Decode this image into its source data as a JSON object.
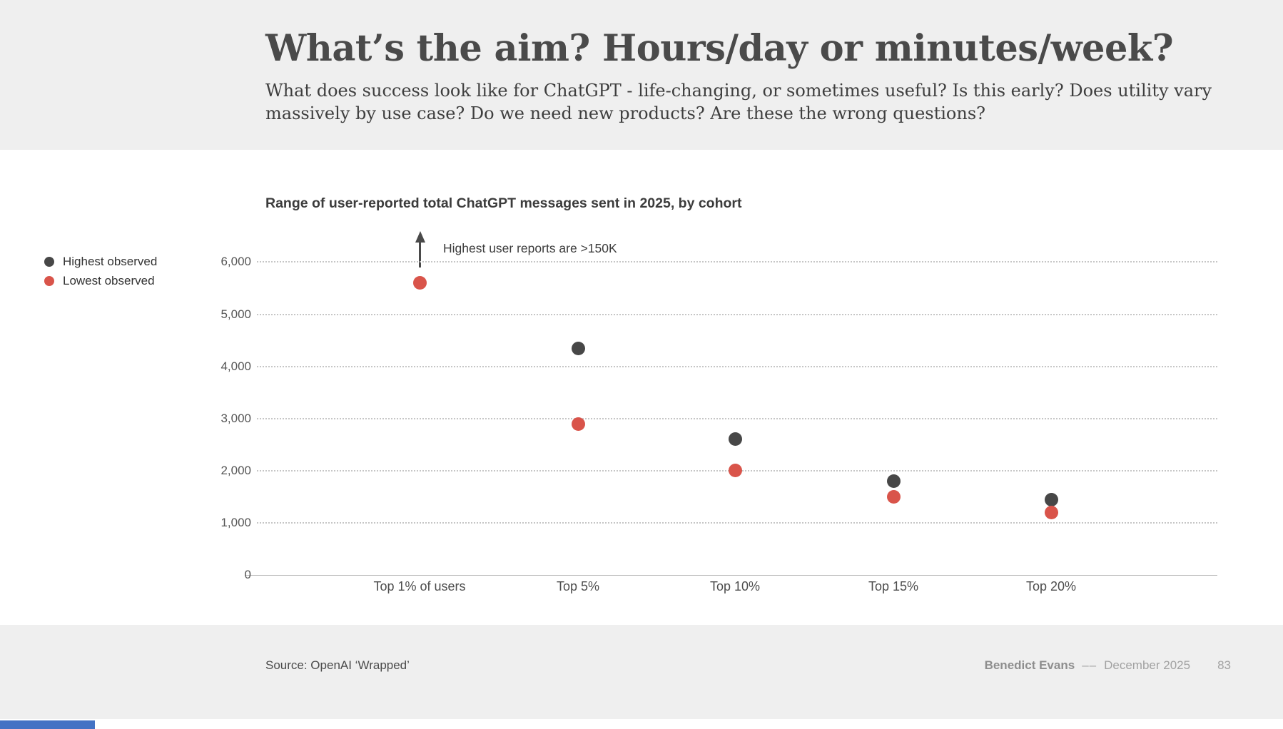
{
  "header": {
    "title": "What’s the aim? Hours/day or minutes/week?",
    "subtitle": "What does success look like for ChatGPT - life-changing, or sometimes useful? Is this early? Does utility vary massively by use case? Do we need new products? Are these the wrong questions?"
  },
  "chart_data": {
    "type": "scatter",
    "title": "Range of user-reported total ChatGPT messages sent in 2025, by cohort",
    "categories": [
      "Top 1% of users",
      "Top 5%",
      "Top 10%",
      "Top 15%",
      "Top 20%"
    ],
    "series": [
      {
        "name": "Highest observed",
        "color": "#474747",
        "values": [
          null,
          4350,
          2600,
          1800,
          1450
        ]
      },
      {
        "name": "Lowest observed",
        "color": "#d9544a",
        "values": [
          5600,
          2900,
          2000,
          1500,
          1200
        ]
      }
    ],
    "annotation": "Highest user reports are >150K",
    "ylim": [
      0,
      6000
    ],
    "yticks": [
      0,
      1000,
      2000,
      3000,
      4000,
      5000,
      6000
    ],
    "ytick_labels": [
      "0",
      "1,000",
      "2,000",
      "3,000",
      "4,000",
      "5,000",
      "6,000"
    ],
    "grid": "horizontal dotted",
    "legend_position": "left"
  },
  "footer": {
    "source": "Source: OpenAI ‘Wrapped’",
    "author": "Benedict Evans",
    "separator": "––",
    "date": "December 2025",
    "page": "83"
  },
  "colors": {
    "band_gray": "#efefef",
    "highest_dot": "#474747",
    "lowest_dot": "#d9544a",
    "progress_blue": "#4472c4"
  }
}
